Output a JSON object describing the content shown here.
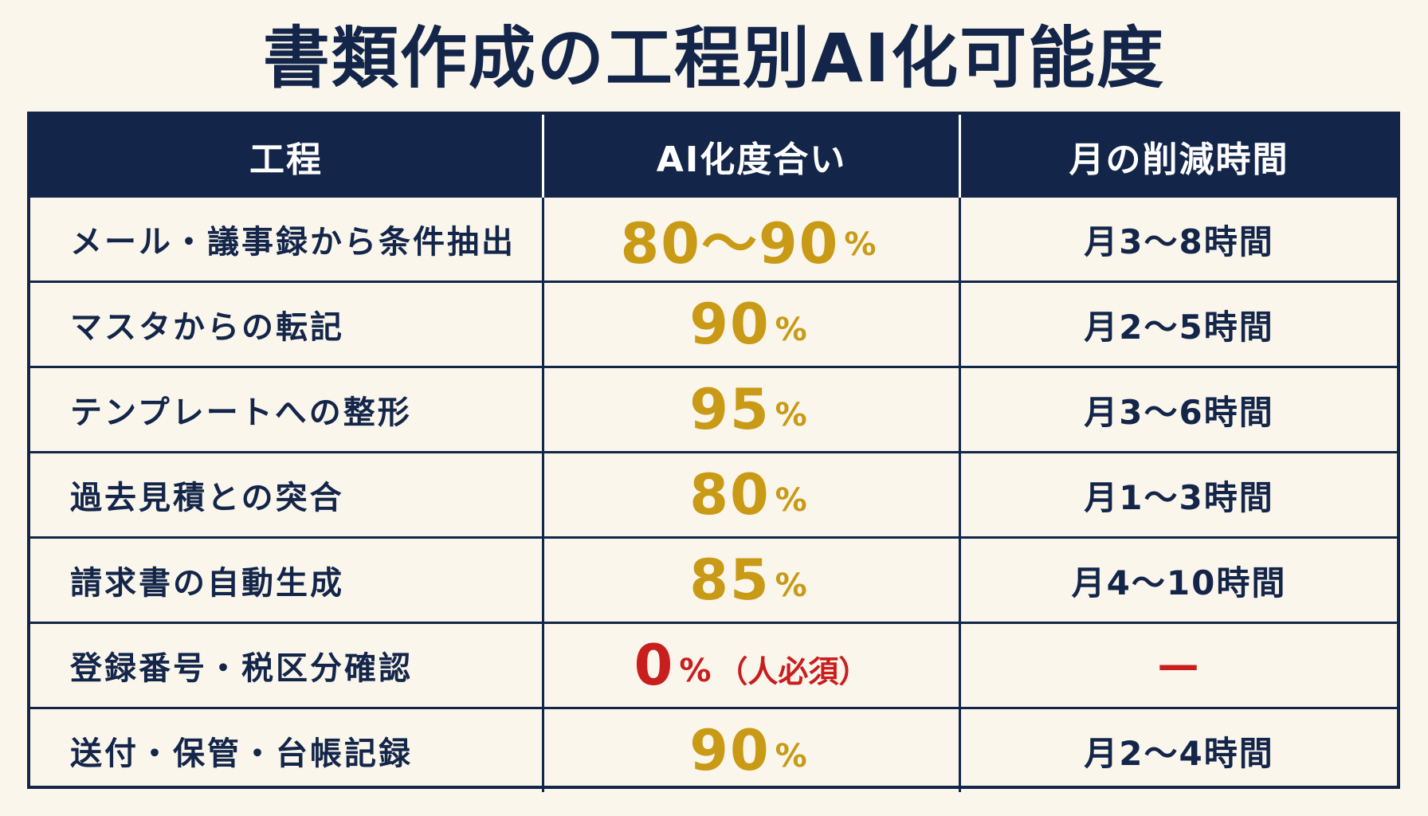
{
  "title": "書類作成の工程別AI化可能度",
  "colors": {
    "navy": "#13264a",
    "gold": "#c99a16",
    "red": "#c81e1e",
    "background": "#fbf6ec"
  },
  "table": {
    "headers": [
      "工程",
      "AI化度合い",
      "月の削減時間"
    ],
    "rows": [
      {
        "step": "メール・議事録から条件抽出",
        "rate": "80〜90",
        "pct": "%",
        "note": "",
        "time": "月3〜8時間",
        "highlight": false
      },
      {
        "step": "マスタからの転記",
        "rate": "90",
        "pct": "%",
        "note": "",
        "time": "月2〜5時間",
        "highlight": false
      },
      {
        "step": "テンプレートへの整形",
        "rate": "95",
        "pct": "%",
        "note": "",
        "time": "月3〜6時間",
        "highlight": false
      },
      {
        "step": "過去見積との突合",
        "rate": "80",
        "pct": "%",
        "note": "",
        "time": "月1〜3時間",
        "highlight": false
      },
      {
        "step": "請求書の自動生成",
        "rate": "85",
        "pct": "%",
        "note": "",
        "time": "月4〜10時間",
        "highlight": false
      },
      {
        "step": "登録番号・税区分確認",
        "rate": "0",
        "pct": "%",
        "note": "（人必須）",
        "time": "—",
        "highlight": true
      },
      {
        "step": "送付・保管・台帳記録",
        "rate": "90",
        "pct": "%",
        "note": "",
        "time": "月2〜4時間",
        "highlight": false
      }
    ]
  }
}
